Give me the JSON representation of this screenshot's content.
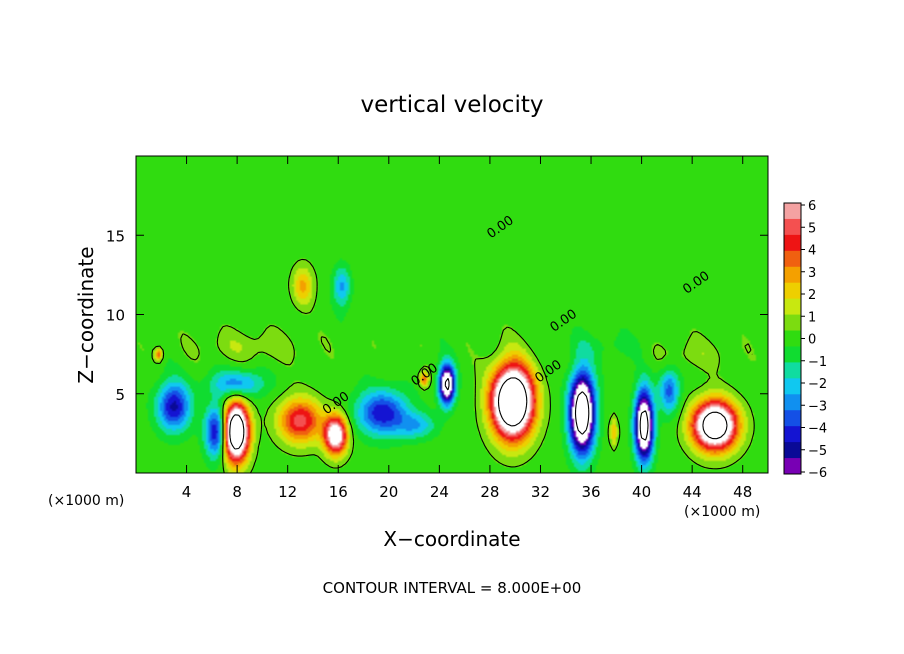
{
  "chart_data": {
    "type": "heatmap",
    "title": "vertical velocity",
    "xlabel": "X−coordinate",
    "ylabel": "Z−coordinate",
    "x_unit_left": "(×1000 m)",
    "x_unit_right": "(×1000 m)",
    "xlim": [
      0,
      50
    ],
    "ylim": [
      0,
      20
    ],
    "x_ticks": [
      4,
      8,
      12,
      16,
      20,
      24,
      28,
      32,
      36,
      40,
      44,
      48
    ],
    "y_ticks": [
      5,
      10,
      15
    ],
    "footer": "CONTOUR INTERVAL = 8.000E+00",
    "contour_labels": [
      {
        "text": "0.00",
        "x": 29.0,
        "y": 15.3
      },
      {
        "text": "0.00",
        "x": 44.5,
        "y": 11.8
      },
      {
        "text": "0.00",
        "x": 34.0,
        "y": 9.4
      },
      {
        "text": "0.00",
        "x": 23.0,
        "y": 6.0
      },
      {
        "text": "0.00",
        "x": 32.8,
        "y": 6.2
      },
      {
        "text": "0.00",
        "x": 16.0,
        "y": 4.2
      }
    ],
    "colorbar": {
      "ticks": [
        "6",
        "5",
        "4",
        "3",
        "2",
        "1",
        "0",
        "−1",
        "−2",
        "−3",
        "−4",
        "−5",
        "−6"
      ],
      "colors": [
        "#f4a2a2",
        "#f45050",
        "#ee1414",
        "#f06010",
        "#f4a000",
        "#eecf00",
        "#c8e810",
        "#7cdc10",
        "#30dc10",
        "#10dc30",
        "#10dca0",
        "#10c8f0",
        "#1090f0",
        "#1450e6",
        "#1414d2",
        "#0a0a96",
        "#7800b4"
      ],
      "white_above": 6,
      "white_below": -6
    },
    "features": [
      {
        "x": 7.9,
        "z": 2.6,
        "sx": 1.0,
        "sz": 1.8,
        "w": 12
      },
      {
        "x": 13.0,
        "z": 3.3,
        "sx": 1.7,
        "sz": 1.4,
        "w": 5
      },
      {
        "x": 15.8,
        "z": 2.4,
        "sx": 0.9,
        "sz": 1.2,
        "w": 8
      },
      {
        "x": 22.8,
        "z": 5.9,
        "sx": 0.35,
        "sz": 0.5,
        "w": 3.5
      },
      {
        "x": 29.8,
        "z": 4.5,
        "sx": 1.6,
        "sz": 2.2,
        "w": 13
      },
      {
        "x": 45.8,
        "z": 3.0,
        "sx": 1.7,
        "sz": 1.5,
        "w": 11
      },
      {
        "x": 13.2,
        "z": 11.8,
        "sx": 0.8,
        "sz": 1.2,
        "w": 2.7
      },
      {
        "x": 37.8,
        "z": 2.6,
        "sx": 0.3,
        "sz": 0.9,
        "w": 2.5
      },
      {
        "x": 1.8,
        "z": 7.5,
        "sx": 0.3,
        "sz": 0.4,
        "w": 3.5
      },
      {
        "x": 9.0,
        "z": 8.0,
        "sx": 4.0,
        "sz": 1.0,
        "w": 0.9
      },
      {
        "x": 44.0,
        "z": 7.5,
        "sx": 3.0,
        "sz": 1.0,
        "w": 0.8
      },
      {
        "x": 3.0,
        "z": 4.2,
        "sx": 1.3,
        "sz": 1.5,
        "w": -4.8
      },
      {
        "x": 8.0,
        "z": 5.6,
        "sx": 2.0,
        "sz": 0.9,
        "w": -3.2
      },
      {
        "x": 6.4,
        "z": 2.6,
        "sx": 0.9,
        "sz": 1.6,
        "w": -5.2
      },
      {
        "x": 19.5,
        "z": 3.8,
        "sx": 2.0,
        "sz": 1.4,
        "w": -4.5
      },
      {
        "x": 24.6,
        "z": 5.6,
        "sx": 0.6,
        "sz": 1.2,
        "w": -9
      },
      {
        "x": 22.2,
        "z": 3.0,
        "sx": 1.5,
        "sz": 0.8,
        "w": -2.2
      },
      {
        "x": 35.3,
        "z": 3.8,
        "sx": 0.95,
        "sz": 2.4,
        "w": -11
      },
      {
        "x": 40.2,
        "z": 3.0,
        "sx": 0.7,
        "sz": 2.1,
        "w": -10
      },
      {
        "x": 42.2,
        "z": 5.2,
        "sx": 0.8,
        "sz": 1.4,
        "w": -3.5
      },
      {
        "x": 16.3,
        "z": 11.8,
        "sx": 0.7,
        "sz": 1.3,
        "w": -2.7
      },
      {
        "x": 37.0,
        "z": 8.0,
        "sx": 3.5,
        "sz": 0.8,
        "w": -0.6
      },
      {
        "x": 20.0,
        "z": 14.0,
        "sx": 4.0,
        "sz": 3.0,
        "w": 0.35
      },
      {
        "x": 40.0,
        "z": 15.0,
        "sx": 6.0,
        "sz": 3.0,
        "w": -0.25
      }
    ]
  }
}
